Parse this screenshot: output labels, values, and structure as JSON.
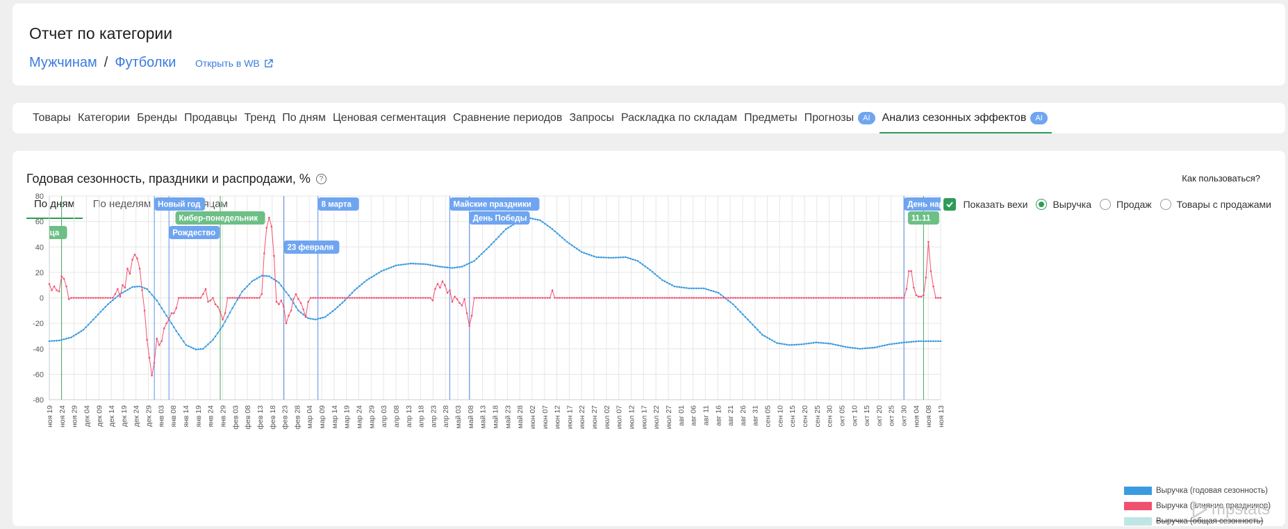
{
  "header": {
    "title": "Отчет по категории",
    "breadcrumb": [
      "Мужчинам",
      "Футболки"
    ],
    "breadcrumb_sep": "/",
    "open_wb": "Открыть в WB"
  },
  "tabs": [
    {
      "label": "Товары"
    },
    {
      "label": "Категории"
    },
    {
      "label": "Бренды"
    },
    {
      "label": "Продавцы"
    },
    {
      "label": "Тренд"
    },
    {
      "label": "По дням"
    },
    {
      "label": "Ценовая сегментация"
    },
    {
      "label": "Сравнение периодов"
    },
    {
      "label": "Запросы"
    },
    {
      "label": "Раскладка по складам"
    },
    {
      "label": "Предметы"
    },
    {
      "label": "Прогнозы",
      "badge": "AI"
    },
    {
      "label": "Анализ сезонных эффектов",
      "badge": "AI",
      "active": true
    }
  ],
  "section": {
    "title": "Годовая сезонность, праздники и распродажи, %",
    "help_icon": "?",
    "how_to": "Как пользоваться?",
    "period_tabs": [
      "По дням",
      "По неделям",
      "По месяцам"
    ],
    "show_milestones": "Показать вехи",
    "radio_options": [
      "Выручка",
      "Продаж",
      "Товары с продажами"
    ],
    "selected_radio": "Выручка"
  },
  "logo_text": "mpstats",
  "chart_data": {
    "type": "line",
    "x_ticks": [
      "ноя 19",
      "ноя 24",
      "ноя 29",
      "дек 04",
      "дек 09",
      "дек 14",
      "дек 19",
      "дек 24",
      "дек 29",
      "янв 03",
      "янв 08",
      "янв 14",
      "янв 19",
      "янв 24",
      "янв 29",
      "фев 03",
      "фев 08",
      "фев 13",
      "фев 18",
      "фев 23",
      "фев 28",
      "мар 04",
      "мар 09",
      "мар 14",
      "мар 19",
      "мар 24",
      "мар 29",
      "апр 03",
      "апр 08",
      "апр 13",
      "апр 18",
      "апр 23",
      "апр 28",
      "май 03",
      "май 08",
      "май 13",
      "май 18",
      "май 23",
      "май 28",
      "июн 02",
      "июн 07",
      "июн 12",
      "июн 17",
      "июн 22",
      "июн 27",
      "июл 02",
      "июл 07",
      "июл 12",
      "июл 17",
      "июл 22",
      "июл 27",
      "авг 01",
      "авг 06",
      "авг 11",
      "авг 16",
      "авг 21",
      "авг 26",
      "авг 31",
      "сен 05",
      "сен 10",
      "сен 15",
      "сен 20",
      "сен 25",
      "сен 30",
      "окт 05",
      "окт 10",
      "окт 15",
      "окт 20",
      "окт 25",
      "окт 30",
      "ноя 04",
      "ноя 08",
      "ноя 13"
    ],
    "y_ticks": [
      "80",
      "60",
      "40",
      "20",
      "0",
      "-20",
      "-40",
      "-60",
      "-80"
    ],
    "ylim": [
      -80,
      80
    ],
    "days_total": 365,
    "series": [
      {
        "name": "Выручка (годовая сезонность)",
        "color": "#3a9be0",
        "hidden": false,
        "points": [
          [
            0,
            -34
          ],
          [
            4,
            -33.5
          ],
          [
            9,
            -31
          ],
          [
            14,
            -25
          ],
          [
            19,
            -15
          ],
          [
            24,
            -5
          ],
          [
            29,
            3
          ],
          [
            34,
            8.5
          ],
          [
            37,
            9
          ],
          [
            40,
            7
          ],
          [
            44,
            -2
          ],
          [
            48,
            -14
          ],
          [
            52,
            -26
          ],
          [
            56,
            -37
          ],
          [
            60,
            -40.5
          ],
          [
            63,
            -40
          ],
          [
            67,
            -33
          ],
          [
            71,
            -22
          ],
          [
            75,
            -8
          ],
          [
            79,
            5
          ],
          [
            83,
            13
          ],
          [
            87,
            17.5
          ],
          [
            90,
            17
          ],
          [
            94,
            12
          ],
          [
            98,
            2
          ],
          [
            102,
            -10
          ],
          [
            106,
            -16
          ],
          [
            109,
            -17
          ],
          [
            113,
            -15
          ],
          [
            117,
            -9
          ],
          [
            121,
            -2
          ],
          [
            125,
            6
          ],
          [
            130,
            14
          ],
          [
            136,
            21
          ],
          [
            142,
            25.5
          ],
          [
            148,
            27
          ],
          [
            154,
            26.5
          ],
          [
            160,
            24.5
          ],
          [
            165,
            23.5
          ],
          [
            169,
            24.5
          ],
          [
            174,
            29
          ],
          [
            180,
            40
          ],
          [
            187,
            54
          ],
          [
            193,
            61
          ],
          [
            197,
            62.5
          ],
          [
            201,
            61
          ],
          [
            206,
            54
          ],
          [
            212,
            44
          ],
          [
            218,
            36
          ],
          [
            224,
            32
          ],
          [
            230,
            31.5
          ],
          [
            236,
            32
          ],
          [
            241,
            29
          ],
          [
            246,
            22
          ],
          [
            251,
            14
          ],
          [
            256,
            9
          ],
          [
            262,
            7.5
          ],
          [
            268,
            7.5
          ],
          [
            274,
            4
          ],
          [
            280,
            -5
          ],
          [
            286,
            -17
          ],
          [
            292,
            -29
          ],
          [
            298,
            -35.5
          ],
          [
            303,
            -37
          ],
          [
            308,
            -36.5
          ],
          [
            314,
            -35
          ],
          [
            320,
            -36
          ],
          [
            326,
            -38.5
          ],
          [
            332,
            -40
          ],
          [
            338,
            -39
          ],
          [
            344,
            -36.5
          ],
          [
            350,
            -35
          ],
          [
            356,
            -34
          ],
          [
            360,
            -34
          ],
          [
            365,
            -34
          ]
        ]
      },
      {
        "name": "Выручка (влияние праздников)",
        "color": "#f2506f",
        "hidden": false,
        "points": [
          [
            0,
            11
          ],
          [
            1,
            6
          ],
          [
            2,
            9
          ],
          [
            3,
            6
          ],
          [
            4,
            5
          ],
          [
            5,
            17
          ],
          [
            6,
            15
          ],
          [
            7,
            9
          ],
          [
            8,
            -1
          ],
          [
            9,
            0
          ],
          [
            10,
            0
          ],
          [
            26,
            0
          ],
          [
            27,
            3
          ],
          [
            28,
            7
          ],
          [
            29,
            1
          ],
          [
            30,
            10
          ],
          [
            31,
            8
          ],
          [
            32,
            23
          ],
          [
            33,
            19
          ],
          [
            34,
            30
          ],
          [
            35,
            34
          ],
          [
            36,
            31
          ],
          [
            37,
            23
          ],
          [
            38,
            6
          ],
          [
            39,
            -10
          ],
          [
            40,
            -33
          ],
          [
            41,
            -47
          ],
          [
            42,
            -61
          ],
          [
            43,
            -51
          ],
          [
            44,
            -32
          ],
          [
            45,
            -37
          ],
          [
            46,
            -34
          ],
          [
            47,
            -24
          ],
          [
            48,
            -20
          ],
          [
            49,
            -17
          ],
          [
            50,
            -12
          ],
          [
            51,
            -12
          ],
          [
            52,
            -8
          ],
          [
            53,
            0
          ],
          [
            62,
            0
          ],
          [
            63,
            3
          ],
          [
            64,
            7
          ],
          [
            65,
            -3
          ],
          [
            66,
            -2
          ],
          [
            67,
            0
          ],
          [
            68,
            -5
          ],
          [
            69,
            -7
          ],
          [
            70,
            -11
          ],
          [
            71,
            -17
          ],
          [
            72,
            -12
          ],
          [
            73,
            0
          ],
          [
            86,
            0
          ],
          [
            87,
            3
          ],
          [
            88,
            35
          ],
          [
            89,
            55
          ],
          [
            90,
            63
          ],
          [
            91,
            56
          ],
          [
            92,
            33
          ],
          [
            93,
            -3
          ],
          [
            94,
            -5
          ],
          [
            95,
            -2
          ],
          [
            96,
            -7
          ],
          [
            97,
            -20
          ],
          [
            98,
            -14
          ],
          [
            99,
            -10
          ],
          [
            100,
            -1
          ],
          [
            101,
            3
          ],
          [
            102,
            -1
          ],
          [
            103,
            -4
          ],
          [
            104,
            -9
          ],
          [
            105,
            -15
          ],
          [
            106,
            -3
          ],
          [
            107,
            0
          ],
          [
            156,
            0
          ],
          [
            157,
            -2
          ],
          [
            158,
            7
          ],
          [
            159,
            11
          ],
          [
            160,
            8
          ],
          [
            161,
            13
          ],
          [
            162,
            10
          ],
          [
            163,
            4
          ],
          [
            164,
            6
          ],
          [
            165,
            -3
          ],
          [
            166,
            1
          ],
          [
            167,
            -1
          ],
          [
            168,
            -4
          ],
          [
            169,
            -6
          ],
          [
            170,
            -1
          ],
          [
            171,
            -12
          ],
          [
            172,
            -22
          ],
          [
            173,
            -14
          ],
          [
            174,
            0
          ],
          [
            205,
            0
          ],
          [
            206,
            6
          ],
          [
            207,
            0
          ],
          [
            350,
            0
          ],
          [
            351,
            7
          ],
          [
            352,
            21
          ],
          [
            353,
            21
          ],
          [
            354,
            8
          ],
          [
            355,
            2
          ],
          [
            356,
            1
          ],
          [
            357,
            1
          ],
          [
            358,
            2
          ],
          [
            359,
            16
          ],
          [
            360,
            44
          ],
          [
            361,
            21
          ],
          [
            362,
            9
          ],
          [
            363,
            0
          ],
          [
            365,
            0
          ]
        ]
      },
      {
        "name": "Выручка (общая сезонность)",
        "color": "#bfe6e4",
        "hidden": true,
        "points": []
      }
    ],
    "milestones": [
      {
        "label": "Черная пятница",
        "day": 5,
        "color": "green",
        "row": 2
      },
      {
        "label": "Новый год",
        "day": 43,
        "color": "blue",
        "row": 0
      },
      {
        "label": "Рождество",
        "day": 49,
        "color": "blue",
        "row": 2
      },
      {
        "label": "Кибер-понедельник",
        "day": 70,
        "color": "green",
        "row": 1
      },
      {
        "label": "23 февраля",
        "day": 96,
        "color": "blue",
        "row": 3
      },
      {
        "label": "8 марта",
        "day": 110,
        "color": "blue",
        "row": 0
      },
      {
        "label": "Майские праздники",
        "day": 164,
        "color": "blue",
        "row": 0
      },
      {
        "label": "День Победы",
        "day": 172,
        "color": "blue",
        "row": 1
      },
      {
        "label": "День народного единства",
        "day": 350,
        "color": "blue",
        "row": 0
      },
      {
        "label": "11.11",
        "day": 358,
        "color": "green",
        "row": 1
      }
    ],
    "colors": {
      "blue_marker": "#6fa5f0",
      "green_marker": "#6dbf86",
      "grid": "#e6e6e6"
    }
  }
}
